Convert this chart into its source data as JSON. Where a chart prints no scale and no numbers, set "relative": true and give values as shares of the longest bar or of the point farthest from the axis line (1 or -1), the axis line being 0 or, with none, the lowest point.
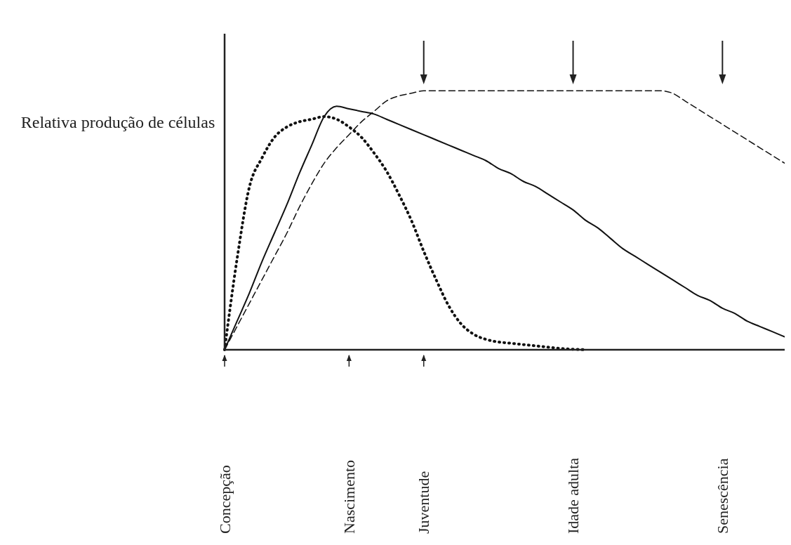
{
  "chart_data": {
    "type": "line",
    "relative": true,
    "ylabel": "Relativa produção de células",
    "categories": [
      "Concepção",
      null,
      null,
      null,
      null,
      null,
      null,
      null,
      null,
      null,
      "Nascimento",
      null,
      null,
      null,
      null,
      null,
      "Juventude",
      null,
      null,
      null,
      null,
      null,
      null,
      null,
      null,
      null,
      null,
      null,
      "Idade adulta",
      null,
      null,
      null,
      null,
      null,
      null,
      null,
      null,
      null,
      null,
      null,
      "Senescência",
      null,
      null,
      null,
      null,
      null
    ],
    "series": [
      {
        "color": "#111111",
        "line_style": "solid",
        "values": [
          0,
          0.11,
          0.22,
          0.34,
          0.45,
          0.56,
          0.68,
          0.79,
          0.9,
          0.94,
          0.93,
          0.92,
          0.91,
          0.89,
          0.87,
          0.85,
          0.83,
          0.81,
          0.79,
          0.77,
          0.75,
          0.73,
          0.7,
          0.68,
          0.65,
          0.63,
          0.6,
          0.57,
          0.54,
          0.5,
          0.47,
          0.43,
          0.39,
          0.36,
          0.33,
          0.3,
          0.27,
          0.24,
          0.21,
          0.19,
          0.16,
          0.14,
          0.11,
          0.09,
          0.07,
          0.05
        ]
      },
      {
        "color": "#111111",
        "line_style": "dashed",
        "values": [
          0,
          0.09,
          0.18,
          0.27,
          0.36,
          0.45,
          0.55,
          0.64,
          0.72,
          0.78,
          0.83,
          0.88,
          0.92,
          0.96,
          0.98,
          0.99,
          1,
          1,
          1,
          1,
          1,
          1,
          1,
          1,
          1,
          1,
          1,
          1,
          1,
          1,
          1,
          1,
          1,
          1,
          1,
          1,
          0.99,
          0.96,
          0.93,
          0.9,
          0.87,
          0.84,
          0.81,
          0.78,
          0.75,
          0.72
        ]
      },
      {
        "color": "#111111",
        "line_style": "dotted",
        "values": [
          0,
          0.35,
          0.63,
          0.74,
          0.82,
          0.86,
          0.88,
          0.89,
          0.9,
          0.89,
          0.86,
          0.82,
          0.76,
          0.69,
          0.6,
          0.5,
          0.38,
          0.27,
          0.17,
          0.1,
          0.06,
          0.04,
          0.03,
          0.025,
          0.02,
          0.015,
          0.01,
          0.005,
          0.002,
          0,
          null,
          null,
          null,
          null,
          null,
          null,
          null,
          null,
          null,
          null,
          null,
          null,
          null,
          null,
          null,
          null
        ]
      }
    ]
  }
}
